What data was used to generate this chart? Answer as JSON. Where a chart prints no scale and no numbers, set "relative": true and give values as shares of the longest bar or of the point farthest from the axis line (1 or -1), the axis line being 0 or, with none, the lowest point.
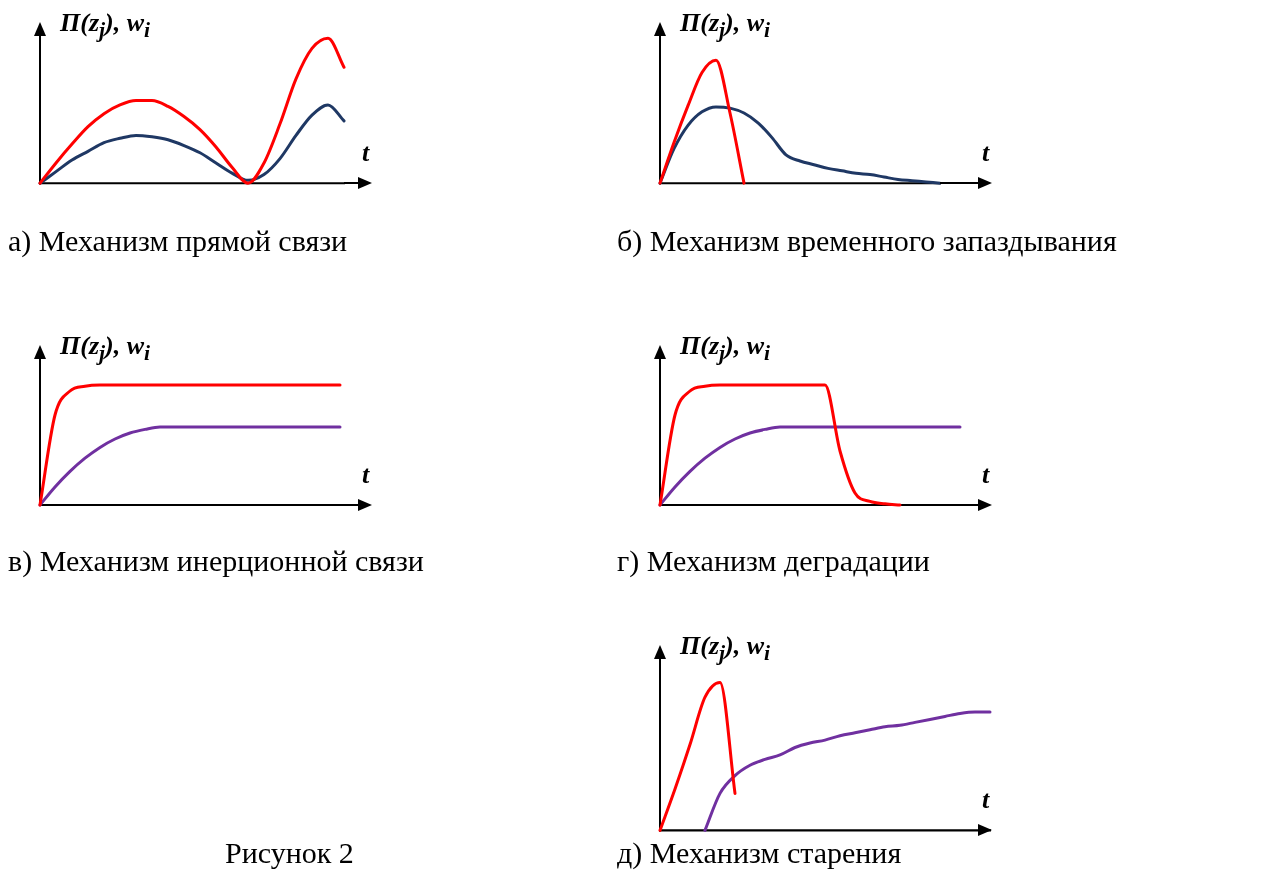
{
  "chart_data": [
    {
      "type": "line",
      "relative": true,
      "title": "а) Механизм прямой связи",
      "ylabel": "Π(z$_{j}$), w$_{i}$",
      "xlabel": "t",
      "categories": [
        null,
        null,
        null,
        null,
        null,
        null,
        null,
        null,
        null,
        null,
        null,
        null,
        null,
        null,
        null,
        null,
        null,
        null,
        null,
        null
      ],
      "series": [
        {
          "color": "#ff0000",
          "values": [
            0,
            0.14,
            0.27,
            0.39,
            0.48,
            0.54,
            0.57,
            0.57,
            0.53,
            0.46,
            0.37,
            0.25,
            0.11,
            0,
            0.14,
            0.41,
            0.72,
            0.93,
            1,
            0.8
          ]
        },
        {
          "color": "#1f3864",
          "values": [
            0,
            0.08,
            0.16,
            0.22,
            0.28,
            0.31,
            0.33,
            0.32,
            0.3,
            0.26,
            0.21,
            0.14,
            0.07,
            0.02,
            0.06,
            0.17,
            0.33,
            0.47,
            0.54,
            0.43
          ]
        }
      ]
    },
    {
      "type": "line",
      "relative": true,
      "title": "б) Механизм временного запаздывания",
      "ylabel": "Π(z$_{j}$), w$_{i}$",
      "xlabel": "t",
      "categories": [
        null,
        null,
        null,
        null,
        null,
        null,
        null,
        null,
        null,
        null,
        null,
        null,
        null,
        null,
        null,
        null,
        null,
        null,
        null,
        null,
        null
      ],
      "series": [
        {
          "color": "#ff0000",
          "values": [
            0,
            0.33,
            0.63,
            0.9,
            1,
            0.57,
            0,
            null,
            null,
            null,
            null,
            null,
            null,
            null,
            null,
            null,
            null,
            null,
            null,
            null,
            null
          ]
        },
        {
          "color": "#1f3864",
          "values": [
            0,
            0.28,
            0.47,
            0.58,
            0.62,
            0.61,
            0.57,
            0.49,
            0.37,
            0.23,
            0.18,
            0.15,
            0.12,
            0.1,
            0.08,
            0.07,
            0.05,
            0.03,
            0.02,
            0.01,
            0
          ]
        }
      ]
    },
    {
      "type": "line",
      "relative": true,
      "title": "в) Механизм инерционной связи",
      "ylabel": "Π(z$_{j}$), w$_{i}$",
      "xlabel": "t",
      "categories": [
        null,
        null,
        null,
        null,
        null,
        null,
        null,
        null,
        null,
        null,
        null,
        null,
        null,
        null,
        null,
        null,
        null,
        null,
        null,
        null,
        null
      ],
      "series": [
        {
          "color": "#ff0000",
          "values": [
            0,
            0.75,
            0.95,
            0.99,
            1,
            1,
            1,
            1,
            1,
            1,
            1,
            1,
            1,
            1,
            1,
            1,
            1,
            1,
            1,
            1,
            1
          ]
        },
        {
          "color": "#7030a0",
          "values": [
            0,
            0.15,
            0.28,
            0.39,
            0.48,
            0.55,
            0.6,
            0.63,
            0.65,
            0.65,
            0.65,
            0.65,
            0.65,
            0.65,
            0.65,
            0.65,
            0.65,
            0.65,
            0.65,
            0.65,
            0.65
          ]
        }
      ]
    },
    {
      "type": "line",
      "relative": true,
      "title": "г) Механизм деградации",
      "ylabel": "Π(z$_{j}$), w$_{i}$",
      "xlabel": "t",
      "categories": [
        null,
        null,
        null,
        null,
        null,
        null,
        null,
        null,
        null,
        null,
        null,
        null,
        null,
        null,
        null,
        null,
        null,
        null,
        null,
        null,
        null
      ],
      "series": [
        {
          "color": "#ff0000",
          "values": [
            0,
            0.75,
            0.95,
            0.99,
            1,
            1,
            1,
            1,
            1,
            1,
            1,
            1,
            0.45,
            0.1,
            0.03,
            0.01,
            0,
            null,
            null,
            null,
            null
          ]
        },
        {
          "color": "#7030a0",
          "values": [
            0,
            0.15,
            0.28,
            0.39,
            0.48,
            0.55,
            0.6,
            0.63,
            0.65,
            0.65,
            0.65,
            0.65,
            0.65,
            0.65,
            0.65,
            0.65,
            0.65,
            0.65,
            0.65,
            0.65,
            0.65
          ]
        }
      ]
    },
    {
      "type": "line",
      "relative": true,
      "title": "д) Механизм старения",
      "ylabel": "Π(z$_{j}$), w$_{i}$",
      "xlabel": "t",
      "annotations": [
        "Рисунок 2"
      ],
      "categories": [
        null,
        null,
        null,
        null,
        null,
        null,
        null,
        null,
        null,
        null,
        null,
        null,
        null,
        null,
        null,
        null,
        null,
        null,
        null,
        null,
        null,
        null,
        null
      ],
      "series": [
        {
          "color": "#ff0000",
          "values": [
            0,
            0.28,
            0.58,
            0.9,
            1,
            0.25,
            null,
            null,
            null,
            null,
            null,
            null,
            null,
            null,
            null,
            null,
            null,
            null,
            null,
            null,
            null,
            null,
            null
          ]
        },
        {
          "color": "#7030a0",
          "values": [
            null,
            null,
            null,
            0,
            0.25,
            0.37,
            0.44,
            0.48,
            0.51,
            0.56,
            0.59,
            0.61,
            0.64,
            0.66,
            0.68,
            0.7,
            0.71,
            0.73,
            0.75,
            0.77,
            0.79,
            0.8,
            0.8
          ]
        }
      ]
    }
  ]
}
